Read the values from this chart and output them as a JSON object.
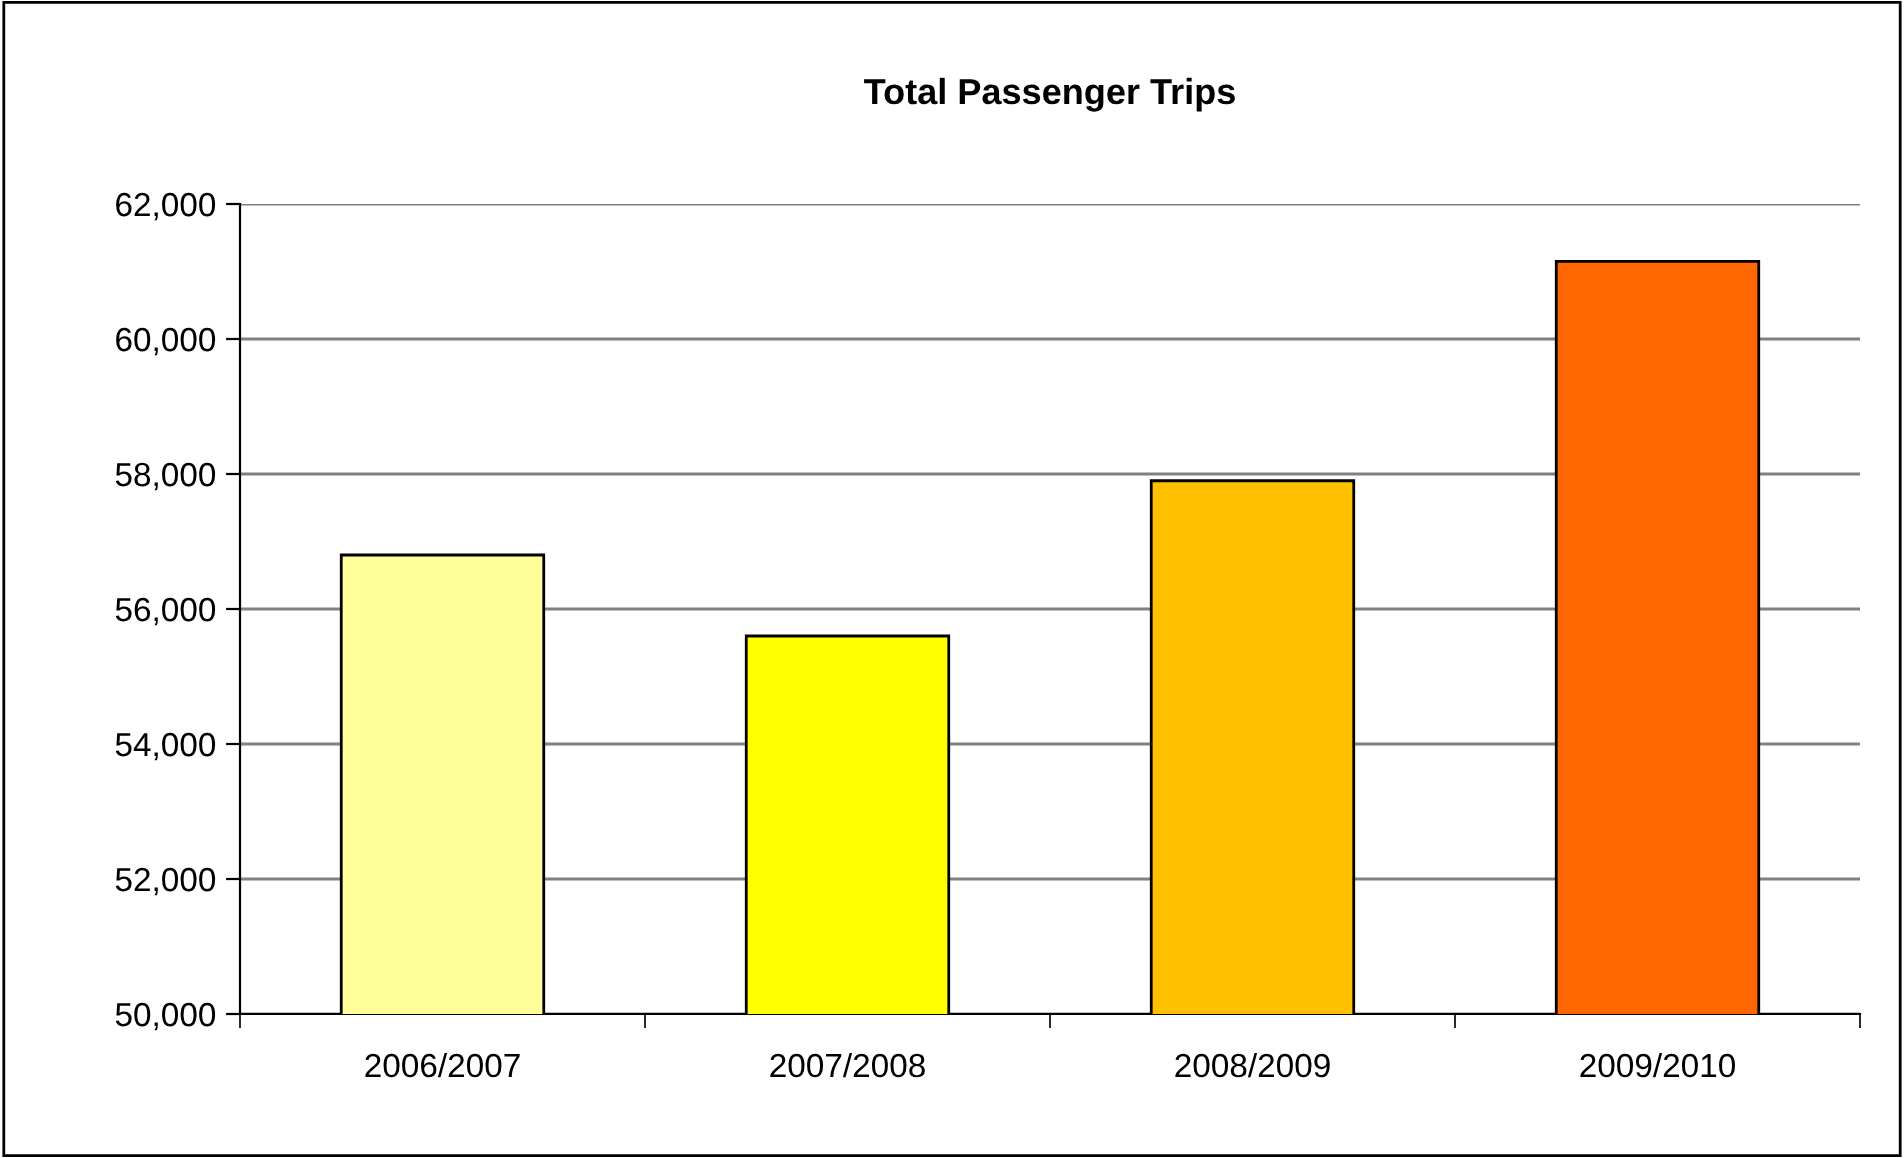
{
  "chart_data": {
    "type": "bar",
    "title": "Total Passenger Trips",
    "categories": [
      "2006/2007",
      "2007/2008",
      "2008/2009",
      "2009/2010"
    ],
    "values": [
      56800,
      55600,
      57900,
      61150
    ],
    "colors": [
      "#ffff99",
      "#ffff00",
      "#ffc000",
      "#ff6600"
    ],
    "ylim": [
      50000,
      62000
    ],
    "yticks": [
      {
        "value": 50000,
        "label": "50,000"
      },
      {
        "value": 52000,
        "label": "52,000"
      },
      {
        "value": 54000,
        "label": "54,000"
      },
      {
        "value": 56000,
        "label": "56,000"
      },
      {
        "value": 58000,
        "label": "58,000"
      },
      {
        "value": 60000,
        "label": "60,000"
      },
      {
        "value": 62000,
        "label": "62,000"
      }
    ],
    "grid": "y"
  }
}
